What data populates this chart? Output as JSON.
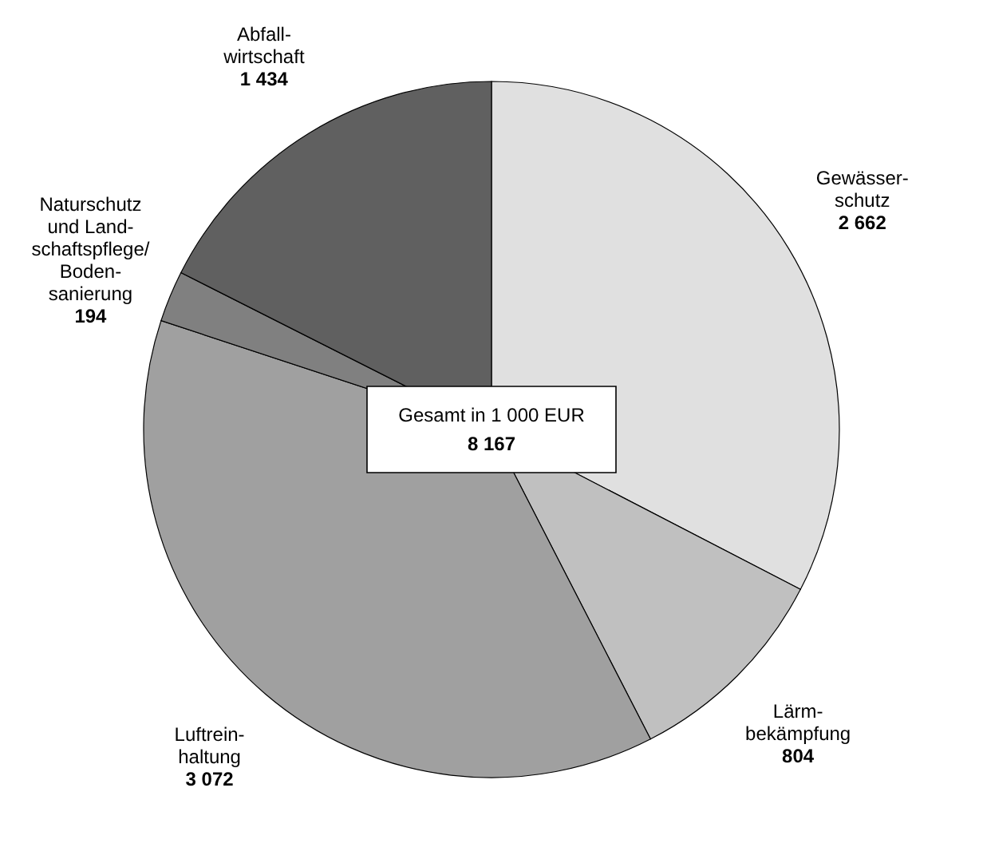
{
  "chart_data": {
    "type": "pie",
    "categories": [
      "Gewässer-\nschutz",
      "Lärm-\nbekämpfung",
      "Luftrein-\nhaltung",
      "Naturschutz\nund Land-\nschaftspflege/\nBoden-\nsanierung",
      "Abfall-\nwirtschaft"
    ],
    "values": [
      2662,
      804,
      3072,
      194,
      1434
    ],
    "colors": [
      "#e0e0e0",
      "#c0c0c0",
      "#a0a0a0",
      "#808080",
      "#606060"
    ],
    "value_labels": [
      "2 662",
      "804",
      "3 072",
      "194",
      "1 434"
    ],
    "annotations": [
      "Gesamt in 1 000 EUR",
      "8 167"
    ]
  }
}
